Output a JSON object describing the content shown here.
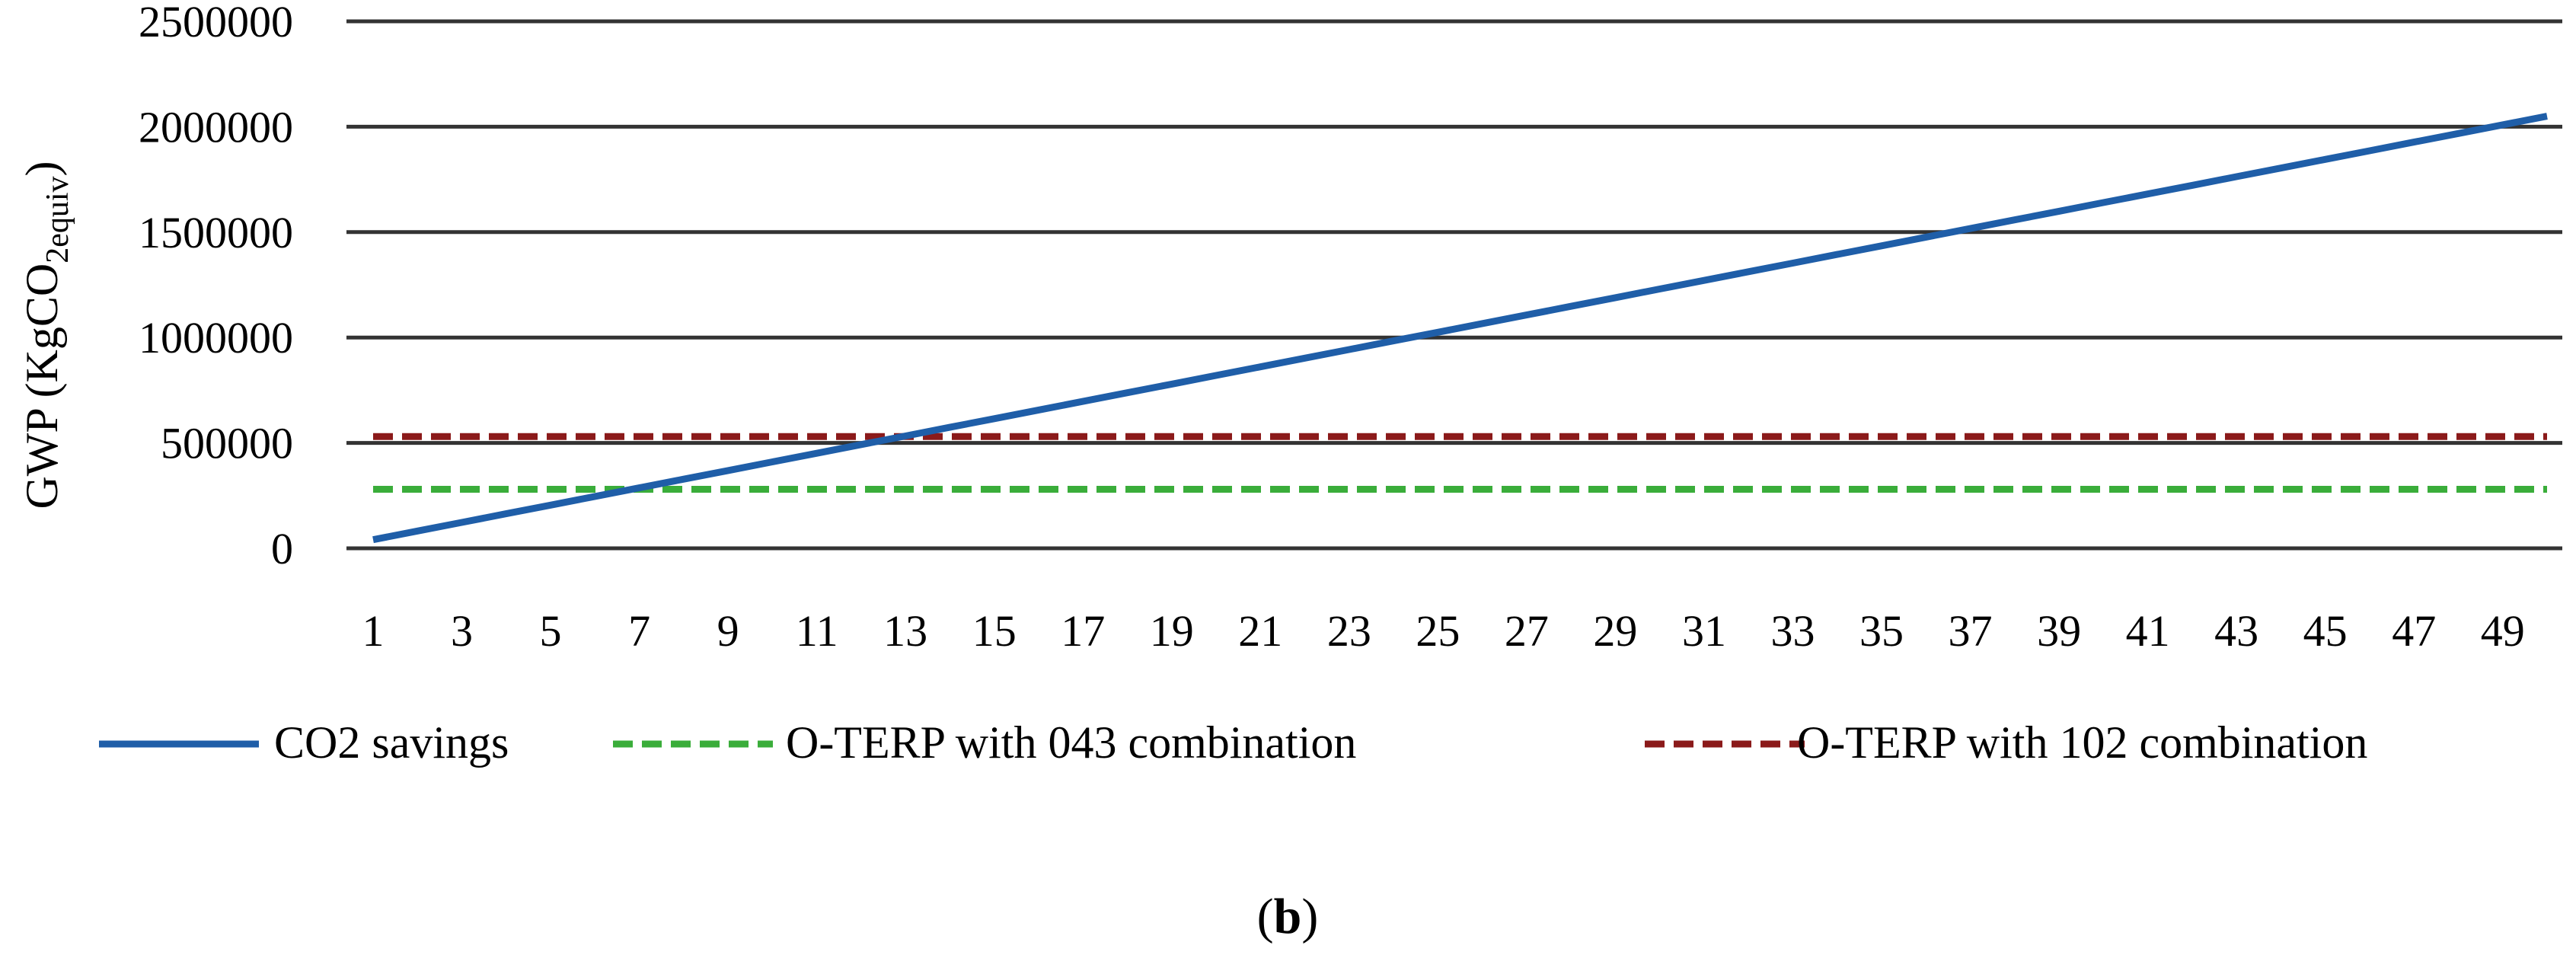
{
  "chart_data": {
    "type": "line",
    "ylabel": "GWP (KgCO",
    "ylabel_sub": "2equiv",
    "ylabel_close": ")",
    "xlabel": "",
    "ylim": [
      0,
      2500000
    ],
    "yticks": [
      "0",
      "500000",
      "1000000",
      "1500000",
      "2000000",
      "2500000"
    ],
    "yticks_values": [
      0,
      500000,
      1000000,
      1500000,
      2000000,
      2500000
    ],
    "x": [
      1,
      2,
      3,
      4,
      5,
      6,
      7,
      8,
      9,
      10,
      11,
      12,
      13,
      14,
      15,
      16,
      17,
      18,
      19,
      20,
      21,
      22,
      23,
      24,
      25,
      26,
      27,
      28,
      29,
      30,
      31,
      32,
      33,
      34,
      35,
      36,
      37,
      38,
      39,
      40,
      41,
      42,
      43,
      44,
      45,
      46,
      47,
      48,
      49,
      50
    ],
    "xticks": [
      "1",
      "3",
      "5",
      "7",
      "9",
      "11",
      "13",
      "15",
      "17",
      "19",
      "21",
      "23",
      "25",
      "27",
      "29",
      "31",
      "33",
      "35",
      "37",
      "39",
      "41",
      "43",
      "45",
      "47",
      "49"
    ],
    "grid": true,
    "legend_position": "bottom",
    "series": [
      {
        "name": "CO2 savings",
        "style": "solid",
        "color": "#1f5ea8",
        "start": 41000,
        "step": 41000
      },
      {
        "name": "O-TERP with 043 combination",
        "style": "dashed",
        "color": "#3aad3a",
        "constant": 280000
      },
      {
        "name": "O-TERP with 102 combination",
        "style": "dashed",
        "color": "#8b1a1a",
        "constant": 530000
      }
    ],
    "caption_open": "(",
    "caption_bold": "b",
    "caption_close": ")"
  }
}
